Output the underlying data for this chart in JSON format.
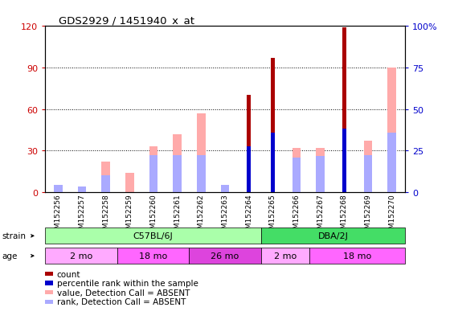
{
  "title": "GDS2929 / 1451940_x_at",
  "samples": [
    "GSM152256",
    "GSM152257",
    "GSM152258",
    "GSM152259",
    "GSM152260",
    "GSM152261",
    "GSM152262",
    "GSM152263",
    "GSM152264",
    "GSM152265",
    "GSM152266",
    "GSM152267",
    "GSM152268",
    "GSM152269",
    "GSM152270"
  ],
  "count": [
    0,
    0,
    0,
    0,
    0,
    0,
    0,
    0,
    70,
    97,
    0,
    0,
    119,
    0,
    0
  ],
  "percentile_rank": [
    0,
    0,
    0,
    0,
    0,
    0,
    0,
    0,
    33,
    43,
    0,
    0,
    46,
    0,
    0
  ],
  "absent_value": [
    0,
    0,
    22,
    14,
    33,
    42,
    57,
    0,
    0,
    0,
    32,
    32,
    0,
    37,
    90
  ],
  "absent_rank": [
    5,
    4,
    12,
    0,
    27,
    27,
    27,
    5,
    0,
    0,
    25,
    26,
    0,
    27,
    43
  ],
  "ylim_left": [
    0,
    120
  ],
  "ylim_right": [
    0,
    100
  ],
  "yticks_left": [
    0,
    30,
    60,
    90,
    120
  ],
  "yticks_right": [
    0,
    25,
    50,
    75,
    100
  ],
  "ytick_labels_right": [
    "0",
    "25",
    "50",
    "75",
    "100%"
  ],
  "color_count": "#aa0000",
  "color_rank": "#0000cc",
  "color_absent_value": "#ffaaaa",
  "color_absent_rank": "#aaaaff",
  "strain_labels": [
    {
      "label": "C57BL/6J",
      "start": 0,
      "end": 9,
      "color": "#aaffaa"
    },
    {
      "label": "DBA/2J",
      "start": 9,
      "end": 15,
      "color": "#44dd66"
    }
  ],
  "age_labels": [
    {
      "label": "2 mo",
      "start": 0,
      "end": 3,
      "color": "#ffaaff"
    },
    {
      "label": "18 mo",
      "start": 3,
      "end": 6,
      "color": "#ff66ff"
    },
    {
      "label": "26 mo",
      "start": 6,
      "end": 9,
      "color": "#dd44dd"
    },
    {
      "label": "2 mo",
      "start": 9,
      "end": 11,
      "color": "#ffaaff"
    },
    {
      "label": "18 mo",
      "start": 11,
      "end": 15,
      "color": "#ff66ff"
    }
  ],
  "legend_items": [
    {
      "label": "count",
      "color": "#aa0000"
    },
    {
      "label": "percentile rank within the sample",
      "color": "#0000cc"
    },
    {
      "label": "value, Detection Call = ABSENT",
      "color": "#ffaaaa"
    },
    {
      "label": "rank, Detection Call = ABSENT",
      "color": "#aaaaff"
    }
  ],
  "bg_color": "#ffffff",
  "tick_color_left": "#cc0000",
  "tick_color_right": "#0000cc"
}
